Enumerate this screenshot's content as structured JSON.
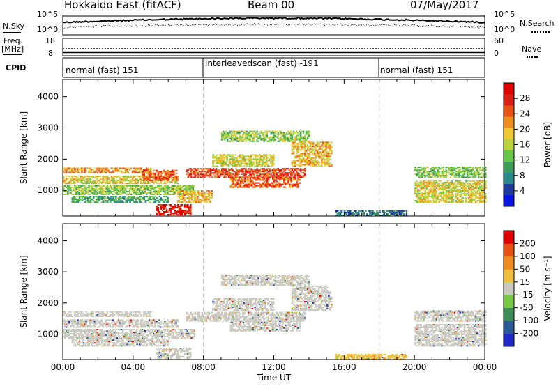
{
  "header": {
    "title": "Hokkaido East (fitACF)",
    "beam": "Beam 00",
    "date": "07/May/2017"
  },
  "top_panels": {
    "nsky_label": "N.Sky",
    "nsky_ticks": [
      "10^5",
      "10^0"
    ],
    "nsearch_label": "N.Search",
    "nsearch_ticks": [
      "10^5",
      "10^0"
    ],
    "freq_label_1": "Freq.",
    "freq_label_2": "[MHz]",
    "freq_ticks": [
      "18",
      "8"
    ],
    "nave_label": "Nave",
    "nave_ticks": [
      "60",
      "0"
    ],
    "cpid_label": "CPID",
    "cpid_segments": [
      {
        "label": "normal (fast) 151",
        "start_hour": 0,
        "end_hour": 8
      },
      {
        "label": "interleavedscan (fast) -191",
        "start_hour": 8,
        "end_hour": 18
      },
      {
        "label": "normal (fast) 151",
        "start_hour": 18,
        "end_hour": 24
      }
    ]
  },
  "chart_data": [
    {
      "type": "heatmap",
      "name": "power",
      "ylabel": "Slant Range [km]",
      "ylim": [
        180,
        4550
      ],
      "yticks": [
        1000,
        2000,
        3000,
        4000
      ],
      "xlim": [
        0,
        24
      ],
      "colorbar": {
        "label": "Power [dB]",
        "range": [
          0,
          32
        ],
        "ticks": [
          "28",
          "24",
          "20",
          "16",
          "12",
          "8",
          "4"
        ],
        "colors": [
          "#0a14e6",
          "#1e3c9c",
          "#28888a",
          "#3c9c5a",
          "#66c846",
          "#bcd23c",
          "#f0c832",
          "#f08c1e",
          "#e85014",
          "#dc1e14",
          "#e00000"
        ]
      },
      "bands": [
        {
          "t0": 0.0,
          "t1": 5.0,
          "r0": 1550,
          "r1": 1720,
          "level": 22
        },
        {
          "t0": 0.0,
          "t1": 6.5,
          "r0": 1200,
          "r1": 1450,
          "level": 18
        },
        {
          "t0": 0.0,
          "t1": 7.5,
          "r0": 850,
          "r1": 1150,
          "level": 14
        },
        {
          "t0": 0.5,
          "t1": 6.0,
          "r0": 600,
          "r1": 800,
          "level": 10
        },
        {
          "t0": 4.5,
          "t1": 6.5,
          "r0": 1300,
          "r1": 1650,
          "level": 26
        },
        {
          "t0": 5.3,
          "t1": 7.3,
          "r0": 200,
          "r1": 550,
          "level": 30
        },
        {
          "t0": 6.5,
          "t1": 8.5,
          "r0": 600,
          "r1": 1000,
          "level": 20
        },
        {
          "t0": 7.0,
          "t1": 13.8,
          "r0": 1400,
          "r1": 1700,
          "level": 27
        },
        {
          "t0": 9.5,
          "t1": 13.5,
          "r0": 1080,
          "r1": 1400,
          "level": 25
        },
        {
          "t0": 13.0,
          "t1": 15.3,
          "r0": 1750,
          "r1": 2550,
          "level": 20
        },
        {
          "t0": 8.5,
          "t1": 12.0,
          "r0": 1750,
          "r1": 2150,
          "level": 17
        },
        {
          "t0": 9.0,
          "t1": 14.0,
          "r0": 2550,
          "r1": 2900,
          "level": 14
        },
        {
          "t0": 20.0,
          "t1": 24.0,
          "r0": 1400,
          "r1": 1750,
          "level": 13
        },
        {
          "t0": 20.0,
          "t1": 24.0,
          "r0": 600,
          "r1": 1300,
          "level": 18
        },
        {
          "t0": 15.5,
          "t1": 19.5,
          "r0": 180,
          "r1": 330,
          "level": 6
        }
      ]
    },
    {
      "type": "heatmap",
      "name": "velocity",
      "ylabel": "Slant Range [km]",
      "xlabel": "Time UT",
      "ylim": [
        180,
        4550
      ],
      "yticks": [
        1000,
        2000,
        3000,
        4000
      ],
      "xlim": [
        0,
        24
      ],
      "xticks": [
        "00:00",
        "04:00",
        "08:00",
        "12:00",
        "16:00",
        "20:00",
        "00:00"
      ],
      "colorbar": {
        "label": "Velocity [m s⁻¹]",
        "ticks": [
          "200",
          "100",
          "50",
          "15",
          "-15",
          "-50",
          "-100",
          "-200"
        ],
        "colors": [
          "#1e28c8",
          "#285a96",
          "#3c8c5a",
          "#78c846",
          "#c8c8be",
          "#f0be3c",
          "#f08c1e",
          "#e85014",
          "#e00000"
        ]
      },
      "dominant_value": "-15 to 15 (ground scatter, grey)",
      "bands": [
        {
          "t0": 0.0,
          "t1": 5.0,
          "r0": 1550,
          "r1": 1720,
          "level": 4
        },
        {
          "t0": 0.0,
          "t1": 6.5,
          "r0": 1200,
          "r1": 1450,
          "level": 4
        },
        {
          "t0": 0.0,
          "t1": 7.5,
          "r0": 850,
          "r1": 1150,
          "level": 4
        },
        {
          "t0": 0.5,
          "t1": 6.0,
          "r0": 600,
          "r1": 800,
          "level": 4
        },
        {
          "t0": 5.3,
          "t1": 7.3,
          "r0": 200,
          "r1": 550,
          "level": 4
        },
        {
          "t0": 7.0,
          "t1": 13.8,
          "r0": 1400,
          "r1": 1700,
          "level": 4
        },
        {
          "t0": 9.5,
          "t1": 13.5,
          "r0": 1080,
          "r1": 1400,
          "level": 4
        },
        {
          "t0": 13.0,
          "t1": 15.3,
          "r0": 1750,
          "r1": 2550,
          "level": 4
        },
        {
          "t0": 8.5,
          "t1": 12.0,
          "r0": 1750,
          "r1": 2150,
          "level": 4
        },
        {
          "t0": 9.0,
          "t1": 14.0,
          "r0": 2550,
          "r1": 2900,
          "level": 4
        },
        {
          "t0": 20.0,
          "t1": 24.0,
          "r0": 1400,
          "r1": 1750,
          "level": 4
        },
        {
          "t0": 20.0,
          "t1": 24.0,
          "r0": 600,
          "r1": 1300,
          "level": 4
        },
        {
          "t0": 15.5,
          "t1": 19.5,
          "r0": 180,
          "r1": 330,
          "level": 5
        }
      ]
    }
  ]
}
